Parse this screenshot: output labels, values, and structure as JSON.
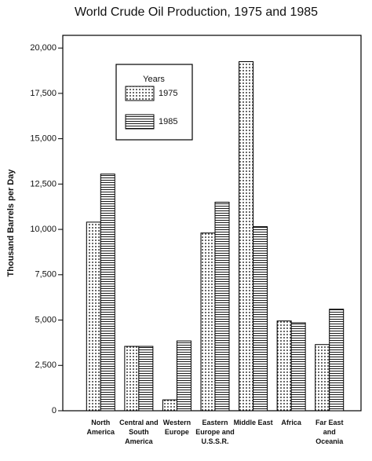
{
  "chart_data": {
    "type": "bar",
    "title": "World Crude Oil Production, 1975 and 1985",
    "y_label": "Thousand Barrels per Day",
    "legend_title": "Years",
    "legend_position": "upper left",
    "categories": [
      "North America",
      "Central and South America",
      "Western Europe",
      "Eastern Europe and U.S.S.R.",
      "Middle East",
      "Africa",
      "Far East and Oceania"
    ],
    "series": [
      {
        "name": "1975",
        "pattern": "dots",
        "color": "#000000",
        "values": [
          10400,
          3550,
          600,
          9800,
          19250,
          4950,
          3650
        ]
      },
      {
        "name": "1985",
        "pattern": "lines",
        "color": "#000000",
        "values": [
          13050,
          3550,
          3850,
          11500,
          10150,
          4850,
          5600
        ]
      }
    ],
    "ylim": [
      0,
      20700
    ],
    "yticks": [
      0,
      {
        "value": 2500,
        "label": "2,500"
      },
      {
        "value": 5000,
        "label": "5,000"
      },
      {
        "value": 7500,
        "label": "7,500"
      },
      {
        "value": 10000,
        "label": "10,000"
      },
      {
        "value": 12500,
        "label": "12,500"
      },
      {
        "value": 15000,
        "label": "15,000"
      },
      {
        "value": 17500,
        "label": "17,500"
      },
      {
        "value": 20000,
        "label": "20,000"
      }
    ]
  }
}
